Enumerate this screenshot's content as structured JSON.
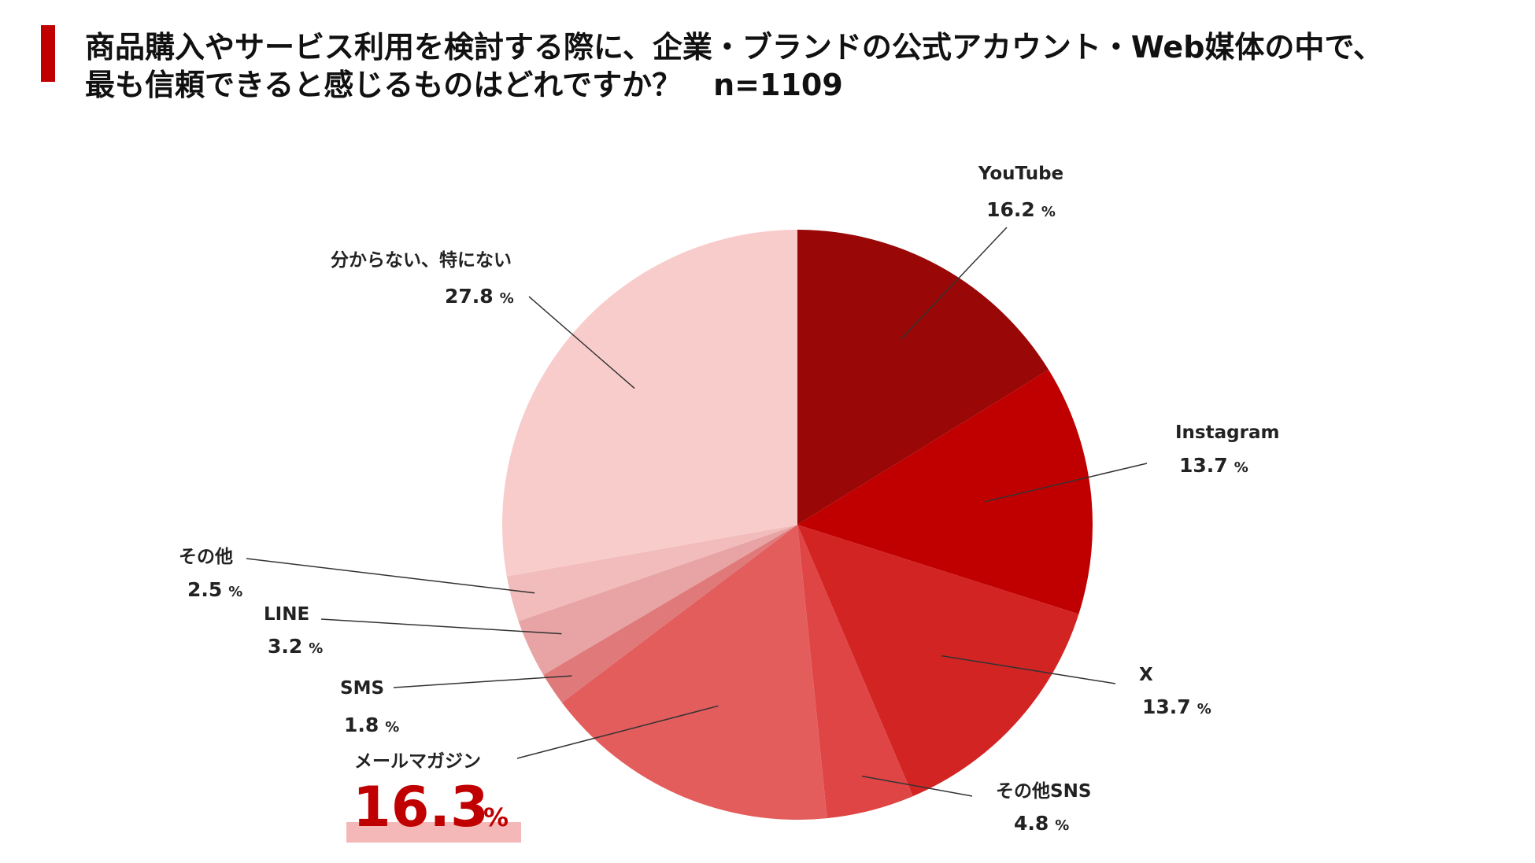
{
  "title": {
    "line1": "商品購入やサービス利用を検討する際に、企業・ブランドの公式アカウント・Web媒体の中で、",
    "line2": "最も信頼できると感じるものはどれですか？",
    "n": "n=1109"
  },
  "chart_data": {
    "type": "pie",
    "unit": "%",
    "slices": [
      {
        "label": "YouTube",
        "value": 16.2,
        "display": "16.2",
        "color": "#9a0707"
      },
      {
        "label": "Instagram",
        "value": 13.7,
        "display": "13.7",
        "color": "#c00000"
      },
      {
        "label": "X",
        "value": 13.7,
        "display": "13.7",
        "color": "#d32424"
      },
      {
        "label": "その他SNS",
        "value": 4.8,
        "display": "4.8",
        "color": "#e04545"
      },
      {
        "label": "メールマガジン",
        "value": 16.3,
        "display": "16.3",
        "color": "#e35d5d",
        "highlight": true
      },
      {
        "label": "SMS",
        "value": 1.8,
        "display": "1.8",
        "color": "#e07a7a"
      },
      {
        "label": "LINE",
        "value": 3.2,
        "display": "3.2",
        "color": "#e8a4a4"
      },
      {
        "label": "その他",
        "value": 2.5,
        "display": "2.5",
        "color": "#f2bcbc"
      },
      {
        "label": "分からない、特にない",
        "value": 27.8,
        "display": "27.8",
        "color": "#f9cccc"
      }
    ],
    "highlight_color": "#c00000",
    "highlight_band_color": "#f4b8b8"
  }
}
